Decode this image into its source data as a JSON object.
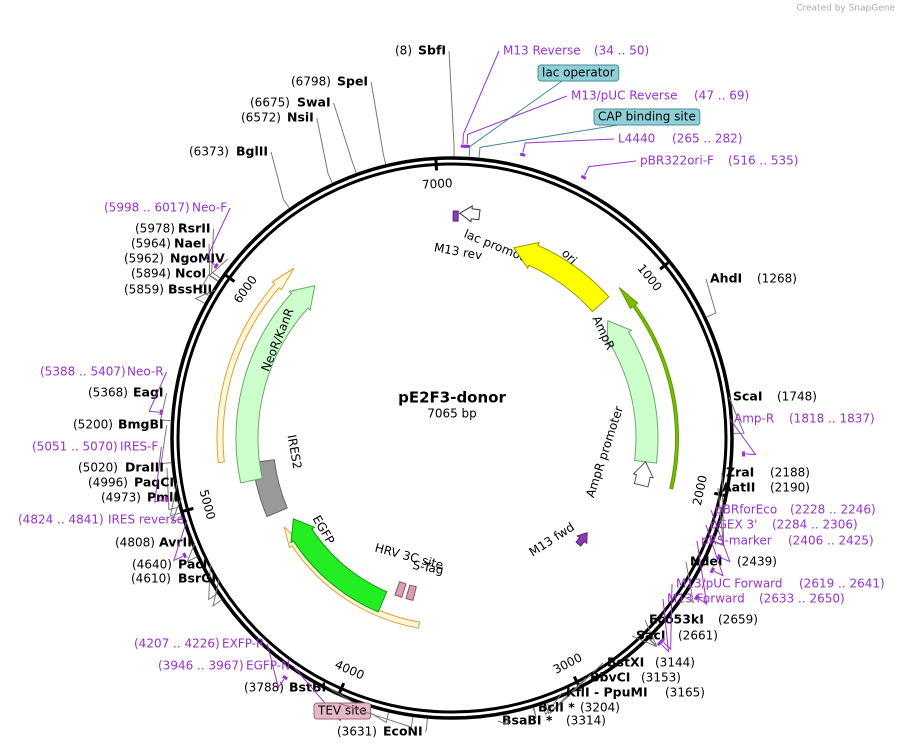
{
  "watermark": "Created by SnapGene",
  "plasmid": {
    "name": "pE2F3-donor",
    "length": {
      "value": 7065,
      "label": "7065 bp"
    },
    "ticks": [
      1000,
      2000,
      3000,
      4000,
      5000,
      6000,
      7000
    ]
  },
  "sites": [
    {
      "name": "SbfI",
      "position": {
        "value": 8,
        "label": "(8)"
      }
    },
    {
      "name": "SpeI",
      "position": {
        "value": 6798,
        "label": "(6798)"
      }
    },
    {
      "name": "SwaI",
      "position": {
        "value": 6675,
        "label": "(6675)"
      }
    },
    {
      "name": "NsiI",
      "position": {
        "value": 6572,
        "label": "(6572)"
      }
    },
    {
      "name": "BglII",
      "position": {
        "value": 6373,
        "label": "(6373)"
      }
    },
    {
      "name": "RsrII",
      "position": {
        "value": 5978,
        "label": "(5978)"
      }
    },
    {
      "name": "NaeI",
      "position": {
        "value": 5964,
        "label": "(5964)"
      }
    },
    {
      "name": "NgoMIV",
      "position": {
        "value": 5962,
        "label": "(5962)"
      }
    },
    {
      "name": "NcoI",
      "position": {
        "value": 5894,
        "label": "(5894)"
      }
    },
    {
      "name": "BssHII",
      "position": {
        "value": 5859,
        "label": "(5859)"
      }
    },
    {
      "name": "EagI",
      "position": {
        "value": 5368,
        "label": "(5368)"
      }
    },
    {
      "name": "BmgBI",
      "position": {
        "value": 5200,
        "label": "(5200)"
      }
    },
    {
      "name": "DraIII",
      "position": {
        "value": 5020,
        "label": "(5020)"
      }
    },
    {
      "name": "PaqCI",
      "position": {
        "value": 4996,
        "label": "(4996)"
      }
    },
    {
      "name": "PmlI",
      "position": {
        "value": 4973,
        "label": "(4973)"
      }
    },
    {
      "name": "AvrII",
      "position": {
        "value": 4808,
        "label": "(4808)"
      }
    },
    {
      "name": "PacI",
      "position": {
        "value": 4640,
        "label": "(4640)"
      }
    },
    {
      "name": "BsrGI",
      "position": {
        "value": 4610,
        "label": "(4610)"
      }
    },
    {
      "name": "BstBI",
      "position": {
        "value": 3788,
        "label": "(3788)"
      }
    },
    {
      "name": "EcoNI",
      "position": {
        "value": 3631,
        "label": "(3631)"
      }
    },
    {
      "name": "AhdI",
      "position": {
        "value": 1268,
        "label": "(1268)"
      }
    },
    {
      "name": "ScaI",
      "position": {
        "value": 1748,
        "label": "(1748)"
      }
    },
    {
      "name": "ZraI",
      "position": {
        "value": 2188,
        "label": "(2188)"
      }
    },
    {
      "name": "AatII",
      "position": {
        "value": 2190,
        "label": "(2190)"
      }
    },
    {
      "name": "NdeI",
      "position": {
        "value": 2439,
        "label": "(2439)"
      }
    },
    {
      "name": "Eco53kI",
      "position": {
        "value": 2659,
        "label": "(2659)"
      }
    },
    {
      "name": "SacI",
      "position": {
        "value": 2661,
        "label": "(2661)"
      }
    },
    {
      "name": "BstXI",
      "position": {
        "value": 3144,
        "label": "(3144)"
      }
    },
    {
      "name": "BbvCI",
      "position": {
        "value": 3153,
        "label": "(3153)"
      }
    },
    {
      "name": "KflI - PpuMI",
      "position": {
        "value": 3165,
        "label": "(3165)"
      }
    },
    {
      "name": "BclI *",
      "position": {
        "value": 3204,
        "label": "(3204)"
      }
    },
    {
      "name": "BsaBI *",
      "position": {
        "value": 3314,
        "label": "(3314)"
      }
    }
  ],
  "primers": [
    {
      "name": "M13 Reverse",
      "range": {
        "start": 34,
        "end": 50,
        "label": "(34 .. 50)"
      }
    },
    {
      "name": "M13/pUC Reverse",
      "range": {
        "start": 47,
        "end": 69,
        "label": "(47 .. 69)"
      }
    },
    {
      "name": "L4440",
      "range": {
        "start": 265,
        "end": 282,
        "label": "(265 .. 282)"
      }
    },
    {
      "name": "pBR322ori-F",
      "range": {
        "start": 516,
        "end": 535,
        "label": "(516 .. 535)"
      }
    },
    {
      "name": "Amp-R",
      "range": {
        "start": 1818,
        "end": 1837,
        "label": "(1818 .. 1837)"
      }
    },
    {
      "name": "pBRforEco",
      "range": {
        "start": 2228,
        "end": 2246,
        "label": "(2228 .. 2246)"
      }
    },
    {
      "name": "pGEX 3'",
      "range": {
        "start": 2284,
        "end": 2306,
        "label": "(2284 .. 2306)"
      }
    },
    {
      "name": "pRS-marker",
      "range": {
        "start": 2406,
        "end": 2425,
        "label": "(2406 .. 2425)"
      }
    },
    {
      "name": "M13/pUC Forward",
      "range": {
        "start": 2619,
        "end": 2641,
        "label": "(2619 .. 2641)"
      }
    },
    {
      "name": "M13 Forward",
      "range": {
        "start": 2633,
        "end": 2650,
        "label": "(2633 .. 2650)"
      }
    },
    {
      "name": "Neo-F",
      "range": {
        "start": 5998,
        "end": 6017,
        "label": "(5998 .. 6017)"
      }
    },
    {
      "name": "Neo-R",
      "range": {
        "start": 5388,
        "end": 5407,
        "label": "(5388 .. 5407)"
      }
    },
    {
      "name": "IRES-F",
      "range": {
        "start": 5051,
        "end": 5070,
        "label": "(5051 .. 5070)"
      }
    },
    {
      "name": "IRES reverse",
      "range": {
        "start": 4824,
        "end": 4841,
        "label": "(4824 .. 4841)"
      }
    },
    {
      "name": "EXFP-R",
      "range": {
        "start": 4207,
        "end": 4226,
        "label": "(4207 .. 4226)"
      }
    },
    {
      "name": "EGFP-N",
      "range": {
        "start": 3946,
        "end": 3967,
        "label": "(3946 .. 3967)"
      }
    }
  ],
  "feature_boxes": [
    "lac operator",
    "CAP binding site",
    "TEV site"
  ],
  "features": [
    "lac promoter",
    "M13 rev",
    "ori",
    "AmpR",
    "AmpR promoter",
    "M13 fwd",
    "HRV 3C site",
    "S-Tag",
    "EGFP",
    "IRES2",
    "NeoR/KanR"
  ]
}
